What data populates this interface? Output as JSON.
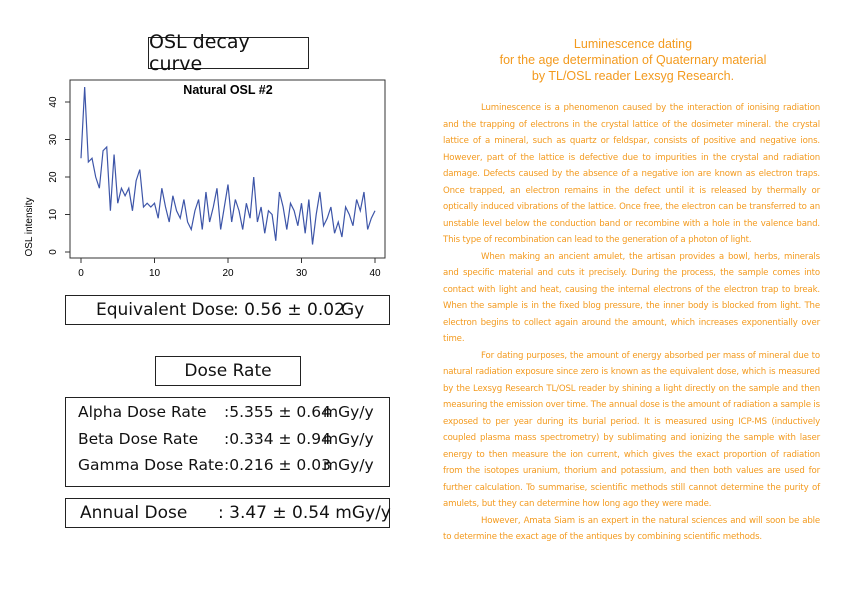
{
  "left": {
    "curve_title": "OSL decay curve",
    "equivalent_dose": {
      "label": "Equivalent Dose",
      "value": ": 0.56 ± 0.02",
      "unit": "Gy"
    },
    "dose_rate_title": "Dose Rate",
    "rates": [
      {
        "label": "Alpha Dose Rate",
        "value": ":5.355 ± 0.64",
        "unit": "mGy/y"
      },
      {
        "label": "Beta Dose Rate",
        "value": ":0.334 ± 0.94",
        "unit": "mGy/y"
      },
      {
        "label": "Gamma Dose Rate",
        "value": ":0.216 ± 0.03",
        "unit": "mGy/y"
      }
    ],
    "annual_dose": {
      "label": "Annual Dose",
      "value": ": 3.47 ± 0.54 mGy/y"
    }
  },
  "chart_data": {
    "type": "line",
    "title": "Natural OSL #2",
    "xlabel": "",
    "ylabel": "OSL intensity",
    "xlim": [
      0,
      40
    ],
    "ylim": [
      0,
      44
    ],
    "xticks": [
      "0",
      "10",
      "20",
      "30",
      "40"
    ],
    "yticks": [
      "0",
      "10",
      "20",
      "30",
      "40"
    ],
    "grid": false,
    "color": "#3d55a8",
    "x": [
      0,
      0.5,
      1,
      1.5,
      2,
      2.5,
      3,
      3.5,
      4,
      4.5,
      5,
      5.5,
      6,
      6.5,
      7,
      7.5,
      8,
      8.5,
      9,
      9.5,
      10,
      10.5,
      11,
      11.5,
      12,
      12.5,
      13,
      13.5,
      14,
      14.5,
      15,
      15.5,
      16,
      16.5,
      17,
      17.5,
      18,
      18.5,
      19,
      19.5,
      20,
      20.5,
      21,
      21.5,
      22,
      22.5,
      23,
      23.5,
      24,
      24.5,
      25,
      25.5,
      26,
      26.5,
      27,
      27.5,
      28,
      28.5,
      29,
      29.5,
      30,
      30.5,
      31,
      31.5,
      32,
      32.5,
      33,
      33.5,
      34,
      34.5,
      35,
      35.5,
      36,
      36.5,
      37,
      37.5,
      38,
      38.5,
      39,
      39.5,
      40
    ],
    "y": [
      25,
      44,
      24,
      25,
      20,
      17,
      27,
      28,
      11,
      26,
      13,
      17,
      15,
      17,
      11,
      19,
      22,
      12,
      13,
      12,
      13,
      9,
      17,
      12,
      8,
      15,
      11,
      9,
      14,
      8,
      6,
      11,
      14,
      6,
      16,
      8,
      12,
      17,
      6,
      12,
      18,
      8,
      14,
      11,
      6,
      13,
      9,
      20,
      8,
      12,
      5,
      11,
      10,
      3,
      16,
      12,
      6,
      13,
      11,
      7,
      13,
      5,
      14,
      2,
      10,
      16,
      7,
      9,
      12,
      5,
      8,
      4,
      12,
      10,
      7,
      14,
      11,
      16,
      6,
      9,
      11
    ]
  },
  "right": {
    "title_lines": [
      "Luminescence dating",
      "for the age determination of Quaternary material",
      "by TL/OSL reader Lexsyg Research."
    ],
    "paragraphs": [
      "Luminescence is a phenomenon caused by the interaction of ionising radiation and the trapping of electrons in the crystal lattice of the dosimeter mineral. the crystal lattice of a mineral, such as quartz or feldspar, consists of positive and negative ions. However, part of the lattice is defective due to impurities in the crystal and radiation damage. Defects caused by the absence of a negative ion are known as electron traps. Once trapped, an electron remains in the defect until it is released by thermally or optically induced vibrations of the lattice. Once free, the electron can be transferred to an unstable level below the conduction band or recombine with a hole in the valence band. This type of recombination can lead to the generation of a photon of light.",
      "When making an ancient amulet, the artisan provides a bowl, herbs, minerals and specific material and cuts it precisely. During the process, the sample comes into contact with light and heat, causing the internal electrons of the electron trap to break. When the sample is in the fixed blog pressure, the inner body is blocked from light. The electron begins to collect again around the amount, which increases exponentially over time.",
      "For dating purposes, the amount of energy absorbed per mass of mineral due to natural radiation exposure since zero is known as the equivalent dose, which is measured by the Lexsyg Research TL/OSL reader by shining a light directly on the sample and then measuring the emission over time. The annual dose is the amount of radiation a sample is exposed to per year during its burial period. It is measured using ICP-MS (inductively coupled plasma mass spectrometry) by sublimating and ionizing the sample with laser energy to then measure the ion current, which gives the exact proportion of radiation from the isotopes uranium, thorium and potassium, and then both values are used for further calculation. To summarise, scientific methods still cannot determine the purity of amulets, but they can determine how long ago they were made.",
      "However, Amata Siam is an expert in the natural sciences and will soon be able to determine the exact age of the antiques by combining scientific methods."
    ],
    "text_color": "#f39a1e"
  }
}
